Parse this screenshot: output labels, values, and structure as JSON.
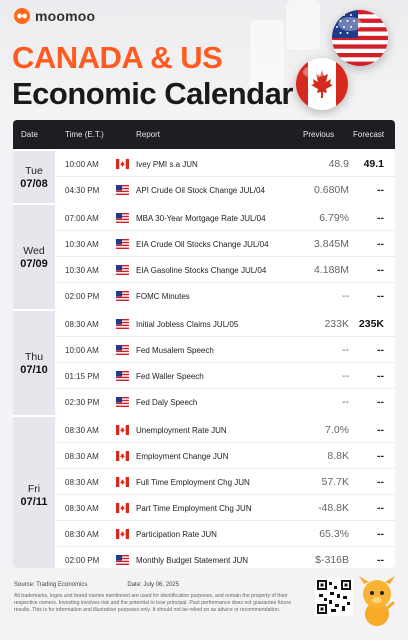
{
  "brand": {
    "name": "moomoo"
  },
  "title": {
    "line1": "CANADA & US",
    "line2": "Economic Calendar"
  },
  "table": {
    "headers": {
      "date": "Date",
      "time": "Time (E.T.)",
      "report": "Report",
      "previous": "Previous",
      "forecast": "Forecast"
    },
    "groups": [
      {
        "day": "Tue",
        "date": "07/08",
        "rows": [
          {
            "time": "10:00 AM",
            "flag": "ca",
            "report": "Ivey PMI s.a JUN",
            "previous": "48.9",
            "forecast": "49.1"
          },
          {
            "time": "04:30 PM",
            "flag": "us",
            "report": "API Crude Oil Stock Change JUL/04",
            "previous": "0.680M",
            "forecast": "--"
          }
        ]
      },
      {
        "day": "Wed",
        "date": "07/09",
        "rows": [
          {
            "time": "07:00 AM",
            "flag": "us",
            "report": "MBA 30-Year Mortgage Rate JUL/04",
            "previous": "6.79%",
            "forecast": "--"
          },
          {
            "time": "10:30 AM",
            "flag": "us",
            "report": "EIA Crude Oil Stocks Change JUL/04",
            "previous": "3.845M",
            "forecast": "--"
          },
          {
            "time": "10:30 AM",
            "flag": "us",
            "report": "EIA Gasoline Stocks Change JUL/04",
            "previous": "4.188M",
            "forecast": "--"
          },
          {
            "time": "02:00 PM",
            "flag": "us",
            "report": "FOMC Minutes",
            "previous": "--",
            "forecast": "--"
          }
        ]
      },
      {
        "day": "Thu",
        "date": "07/10",
        "rows": [
          {
            "time": "08:30 AM",
            "flag": "us",
            "report": "Initial Jobless Claims JUL/05",
            "previous": "233K",
            "forecast": "235K"
          },
          {
            "time": "10:00 AM",
            "flag": "us",
            "report": "Fed Musalem Speech",
            "previous": "--",
            "forecast": "--"
          },
          {
            "time": "01:15 PM",
            "flag": "us",
            "report": "Fed Waller Speech",
            "previous": "--",
            "forecast": "--"
          },
          {
            "time": "02:30 PM",
            "flag": "us",
            "report": "Fed Daly Speech",
            "previous": "--",
            "forecast": "--"
          }
        ]
      },
      {
        "day": "Fri",
        "date": "07/11",
        "rows": [
          {
            "time": "08:30 AM",
            "flag": "ca",
            "report": "Unemployment Rate JUN",
            "previous": "7.0%",
            "forecast": "--"
          },
          {
            "time": "08:30 AM",
            "flag": "ca",
            "report": "Employment Change JUN",
            "previous": "8.8K",
            "forecast": "--"
          },
          {
            "time": "08:30 AM",
            "flag": "ca",
            "report": "Full Time Employment Chg JUN",
            "previous": "57.7K",
            "forecast": "--"
          },
          {
            "time": "08:30 AM",
            "flag": "ca",
            "report": "Part Time Employment Chg JUN",
            "previous": "-48.8K",
            "forecast": "--"
          },
          {
            "time": "08:30 AM",
            "flag": "ca",
            "report": "Participation Rate JUN",
            "previous": "65.3%",
            "forecast": "--"
          },
          {
            "time": "02:00 PM",
            "flag": "us",
            "report": "Monthly Budget Statement JUN",
            "previous": "$-316B",
            "forecast": "--"
          }
        ]
      }
    ]
  },
  "footer": {
    "source": "Source: Trading Economics",
    "date": "Date: July 06, 2025",
    "disclaimer": "All trademarks, logos and brand names mentioned are used for identification purposes, and remain the property of their respective owners. Investing involves risk and the potential to lose principal. Past performance does not guarantee future results. This is for information and illustrative purposes only. It should not be relied on as advice or recommendation."
  },
  "colors": {
    "accent": "#ff5a1f",
    "header_bg": "#1d1d22",
    "day_bg": "#e6e6ec"
  }
}
